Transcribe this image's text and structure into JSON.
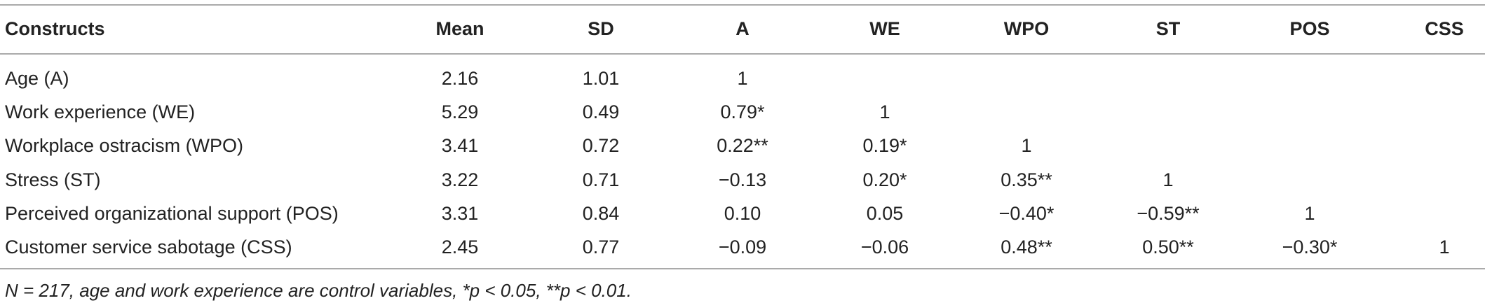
{
  "table": {
    "header": [
      "Constructs",
      "Mean",
      "SD",
      "A",
      "WE",
      "WPO",
      "ST",
      "POS",
      "CSS"
    ],
    "rows": [
      [
        "Age (A)",
        "2.16",
        "1.01",
        "1"
      ],
      [
        "Work experience (WE)",
        "5.29",
        "0.49",
        "0.79*",
        "1"
      ],
      [
        "Workplace ostracism (WPO)",
        "3.41",
        "0.72",
        "0.22**",
        "0.19*",
        "1"
      ],
      [
        "Stress (ST)",
        "3.22",
        "0.71",
        "−0.13",
        "0.20*",
        "0.35**",
        "1"
      ],
      [
        "Perceived organizational support (POS)",
        "3.31",
        "0.84",
        "0.10",
        "0.05",
        "−0.40*",
        "−0.59**",
        "1"
      ],
      [
        "Customer service sabotage (CSS)",
        "2.45",
        "0.77",
        "−0.09",
        "−0.06",
        "0.48**",
        "0.50**",
        "−0.30*",
        "1"
      ]
    ],
    "note": "N = 217, age and work experience are control variables, *p < 0.05, **p < 0.01."
  }
}
